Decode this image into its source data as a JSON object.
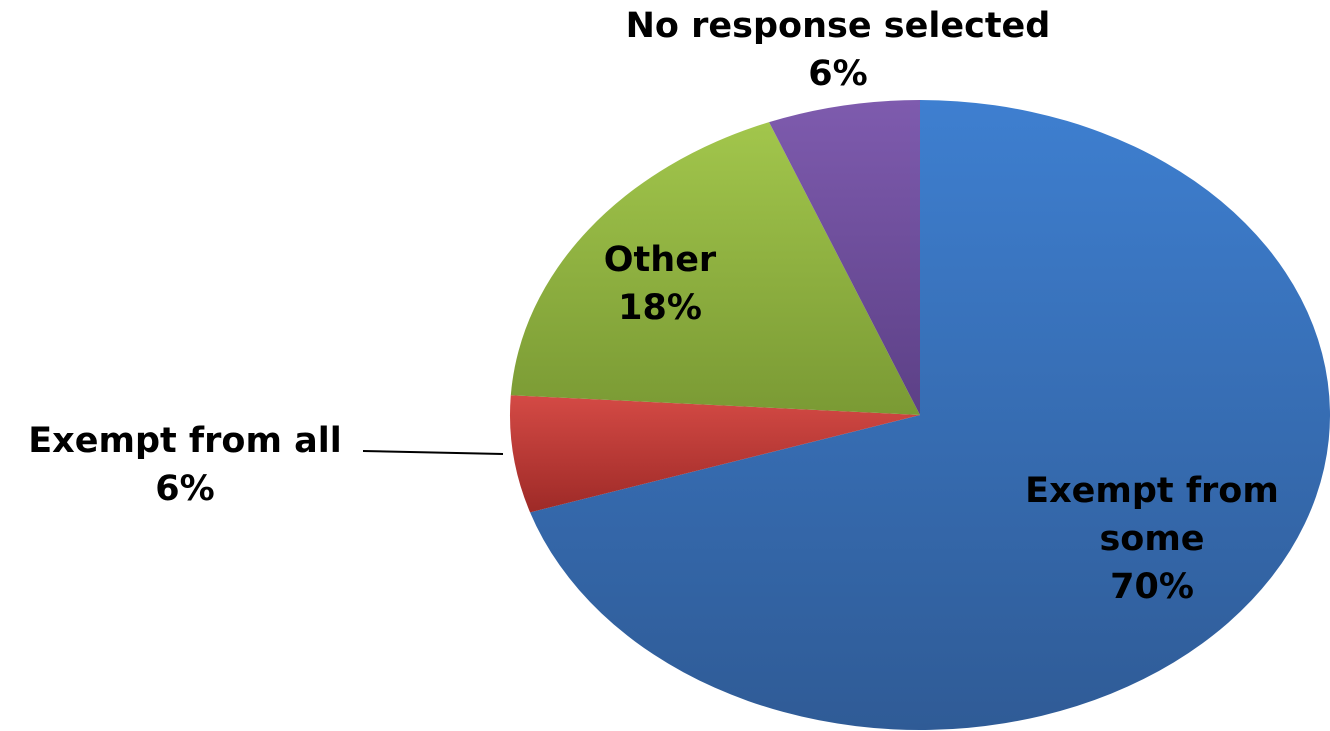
{
  "chart_data": {
    "type": "pie",
    "title": "",
    "series": [
      {
        "values": [
          70,
          6,
          18,
          6
        ],
        "categories": [
          "Exempt from some",
          "Exempt from all",
          "Other",
          "No response selected"
        ],
        "percent_labels": [
          "70%",
          "6%",
          "18%",
          "6%"
        ],
        "label_lines": [
          [
            "Exempt from",
            "some"
          ],
          [
            "Exempt from all"
          ],
          [
            "Other"
          ],
          [
            "No response selected"
          ]
        ],
        "colors": [
          "#3A6FB5",
          "#B5302C",
          "#8DAD3C",
          "#6A4C98"
        ]
      }
    ],
    "start_angle_deg": 0,
    "direction": "clockwise",
    "legend": "none",
    "data_labels": "category name and percentage"
  }
}
